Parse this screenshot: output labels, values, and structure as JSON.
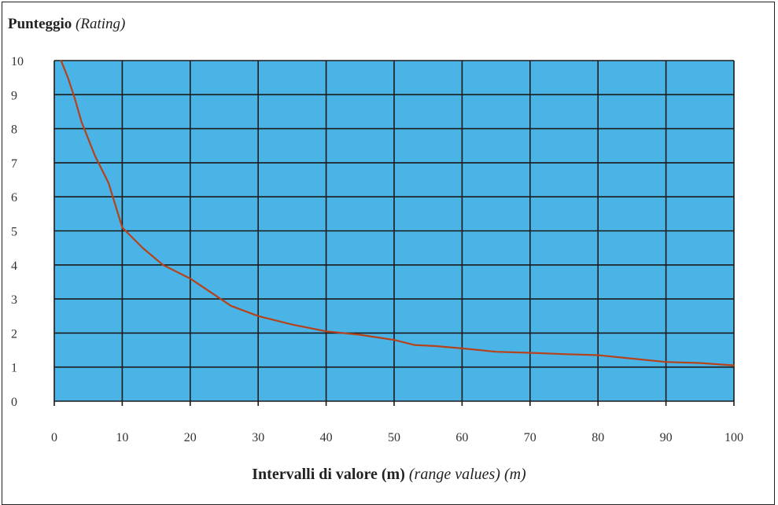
{
  "chart_data": {
    "type": "line",
    "title": "",
    "ylabel": {
      "main": "Punteggio",
      "sub": "(Rating)"
    },
    "xlabel": {
      "main": "Intervalli di valore (m)",
      "sub": "(range values) (m)"
    },
    "xlim": [
      0,
      100
    ],
    "ylim": [
      0,
      10
    ],
    "xticks": [
      "0",
      "10",
      "20",
      "30",
      "40",
      "50",
      "60",
      "70",
      "80",
      "90",
      "100"
    ],
    "yticks": [
      "0",
      "1",
      "2",
      "3",
      "4",
      "5",
      "6",
      "7",
      "8",
      "9",
      "10"
    ],
    "grid": true,
    "series": [
      {
        "color": "#b5421a",
        "x": [
          1,
          2,
          3,
          4,
          6,
          8,
          10,
          13,
          16,
          20,
          23,
          26,
          30,
          35,
          40,
          45,
          50,
          53,
          56,
          60,
          65,
          70,
          75,
          80,
          85,
          90,
          95,
          100
        ],
        "y": [
          10,
          9.5,
          8.9,
          8.2,
          7.2,
          6.4,
          5.1,
          4.5,
          4.0,
          3.6,
          3.2,
          2.8,
          2.5,
          2.25,
          2.05,
          1.95,
          1.8,
          1.65,
          1.62,
          1.55,
          1.45,
          1.42,
          1.38,
          1.35,
          1.25,
          1.15,
          1.12,
          1.05
        ]
      }
    ]
  },
  "colors": {
    "plot_background": "#4ab4e6",
    "grid": "#1a1a1a",
    "curve": "#b5421a"
  }
}
